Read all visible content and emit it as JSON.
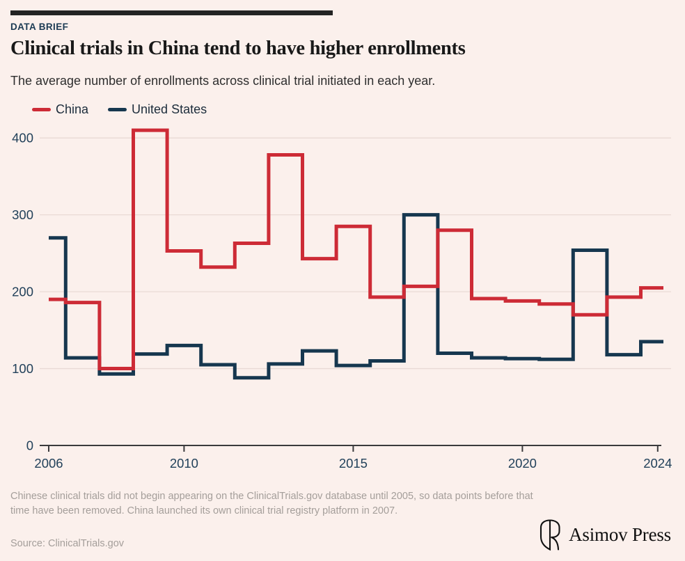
{
  "header": {
    "kicker": "DATA BRIEF",
    "title": "Clinical trials in China tend to have higher enrollments",
    "subtitle": "The average number of enrollments across clinical trial initiated in each year."
  },
  "footer": {
    "note": "Chinese clinical trials did not begin appearing on the ClinicalTrials.gov database until 2005, so data points before that time have been removed. China launched its own clinical trial registry platform in 2007.",
    "source": "Source: ClinicalTrials.gov",
    "logo_text": "Asimov Press"
  },
  "colors": {
    "background": "#fbf0ec",
    "accent_bar": "#232323",
    "kicker": "#1c3b54",
    "gridline": "#e9dad5",
    "axis_line": "#3a3a3c",
    "axis_label": "#22415a",
    "china": "#cd2b36",
    "united_states": "#16374f",
    "footnote": "#a49e9a"
  },
  "chart_data": {
    "type": "line",
    "step": "mid",
    "title": "Clinical trials in China tend to have higher enrollments",
    "xlabel": "",
    "ylabel": "",
    "x": [
      2006,
      2007,
      2008,
      2009,
      2010,
      2011,
      2012,
      2013,
      2014,
      2015,
      2016,
      2017,
      2018,
      2019,
      2020,
      2021,
      2022,
      2023,
      2024
    ],
    "series": [
      {
        "name": "China",
        "color": "#cd2b36",
        "values": [
          190,
          186,
          100,
          410,
          253,
          232,
          263,
          378,
          243,
          285,
          193,
          207,
          280,
          191,
          188,
          184,
          170,
          193,
          205
        ]
      },
      {
        "name": "United States",
        "color": "#16374f",
        "values": [
          270,
          114,
          93,
          119,
          130,
          105,
          88,
          106,
          123,
          104,
          110,
          300,
          120,
          114,
          113,
          112,
          254,
          118,
          135
        ]
      }
    ],
    "yticks": [
      0,
      100,
      200,
      300,
      400
    ],
    "xticks": [
      2006,
      2010,
      2015,
      2020,
      2024
    ],
    "ylim": [
      0,
      415
    ],
    "xlim": [
      2006,
      2024
    ],
    "grid": "horizontal",
    "legend_position": "top-left"
  }
}
